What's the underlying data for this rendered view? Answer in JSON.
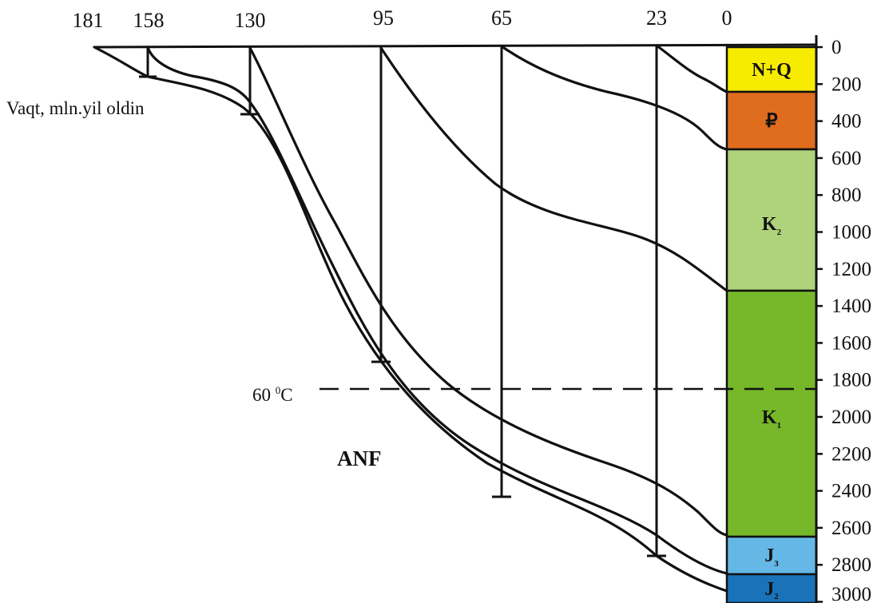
{
  "time_axis": {
    "label": "Vaqt, mln.yil oldin",
    "ticks": [
      "181",
      "158",
      "130",
      "95",
      "65",
      "23",
      "0"
    ]
  },
  "depth_axis": {
    "ticks": [
      "0",
      "200",
      "400",
      "600",
      "800",
      "1000",
      "1200",
      "1400",
      "1600",
      "1800",
      "2000",
      "2200",
      "2400",
      "2600",
      "2800",
      "3000"
    ]
  },
  "isotherm": {
    "label_main": "60 ",
    "label_sup": "0",
    "label_unit": "C"
  },
  "zone_label": "ANF",
  "strata": [
    {
      "main": "N+Q",
      "sub": "",
      "color": "#f7ec00"
    },
    {
      "main": "₽",
      "sub": "",
      "color": "#e06c1e"
    },
    {
      "main": "K",
      "sub": "2",
      "color": "#aed37b"
    },
    {
      "main": "K",
      "sub": "1",
      "color": "#76b82a"
    },
    {
      "main": "J",
      "sub": "3",
      "color": "#65b8e6"
    },
    {
      "main": "J",
      "sub": "2",
      "color": "#1a72b8"
    }
  ]
}
